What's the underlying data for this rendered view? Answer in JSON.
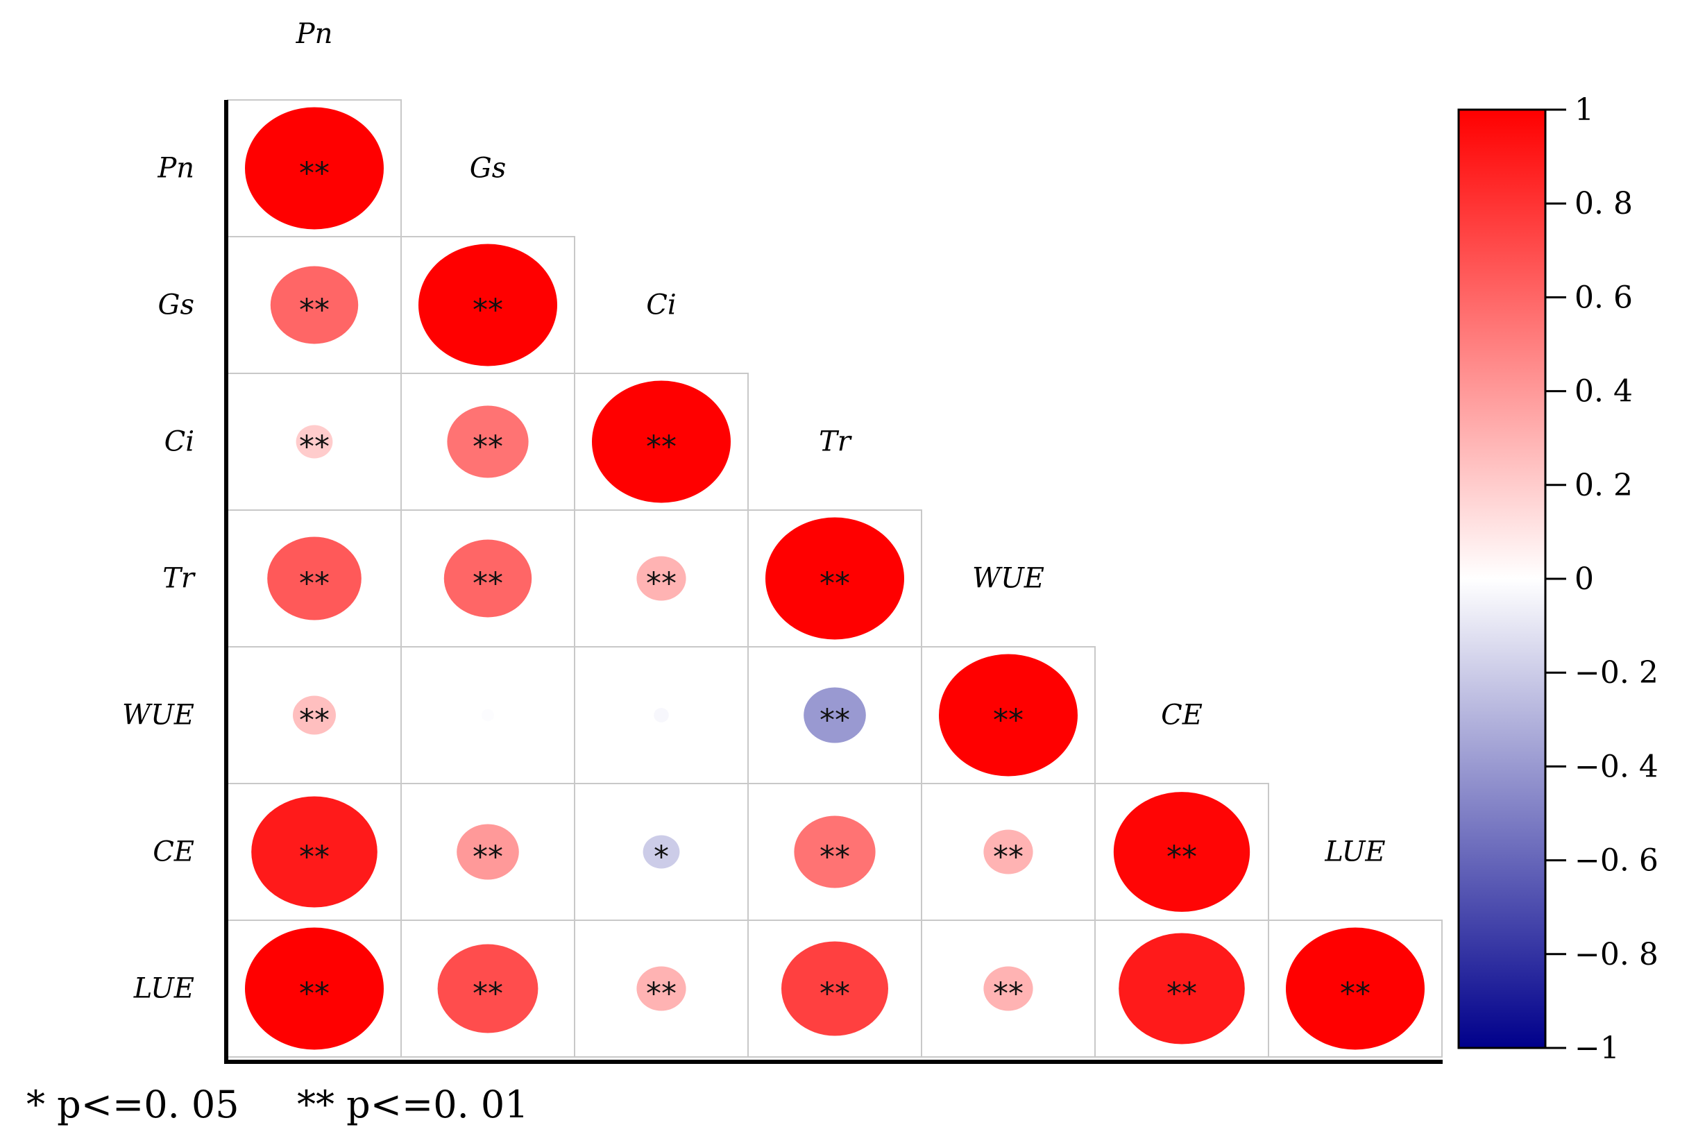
{
  "chart_data": {
    "type": "heatmap",
    "variables": [
      "Pn",
      "Gs",
      "Ci",
      "Tr",
      "WUE",
      "CE",
      "LUE"
    ],
    "matrix_layout": "lower-triangle",
    "marker": "circle sized and colored by correlation coefficient",
    "correlations": [
      [
        1.0,
        null,
        null,
        null,
        null,
        null,
        null
      ],
      [
        0.6,
        1.0,
        null,
        null,
        null,
        null,
        null
      ],
      [
        0.2,
        0.55,
        1.0,
        null,
        null,
        null,
        null
      ],
      [
        0.65,
        0.6,
        0.3,
        1.0,
        null,
        null,
        null
      ],
      [
        0.25,
        -0.01,
        -0.03,
        -0.4,
        1.0,
        null,
        null
      ],
      [
        0.9,
        0.4,
        -0.2,
        0.55,
        0.3,
        0.98,
        null
      ],
      [
        1.0,
        0.7,
        0.3,
        0.75,
        0.3,
        0.9,
        1.0
      ]
    ],
    "significance": [
      [
        "**",
        null,
        null,
        null,
        null,
        null,
        null
      ],
      [
        "**",
        "**",
        null,
        null,
        null,
        null,
        null
      ],
      [
        "**",
        "**",
        "**",
        null,
        null,
        null,
        null
      ],
      [
        "**",
        "**",
        "**",
        "**",
        null,
        null,
        null
      ],
      [
        "**",
        "",
        "",
        "**",
        "**",
        null,
        null
      ],
      [
        "**",
        "**",
        "*",
        "**",
        "**",
        "**",
        null
      ],
      [
        "**",
        "**",
        "**",
        "**",
        "**",
        "**",
        "**"
      ]
    ],
    "colorbar": {
      "min": -1,
      "max": 1,
      "ticks": [
        "1",
        "0. 8",
        "0. 6",
        "0. 4",
        "0. 2",
        "0",
        "−0. 2",
        "−0. 4",
        "−0. 6",
        "−0. 8",
        "−1"
      ],
      "colors": {
        "negative_end": "#00008B",
        "middle": "#FFFFFF",
        "positive_end": "#FF0000"
      }
    },
    "legend": {
      "single": "* p<=0. 05",
      "double": "** p<=0. 01"
    }
  }
}
